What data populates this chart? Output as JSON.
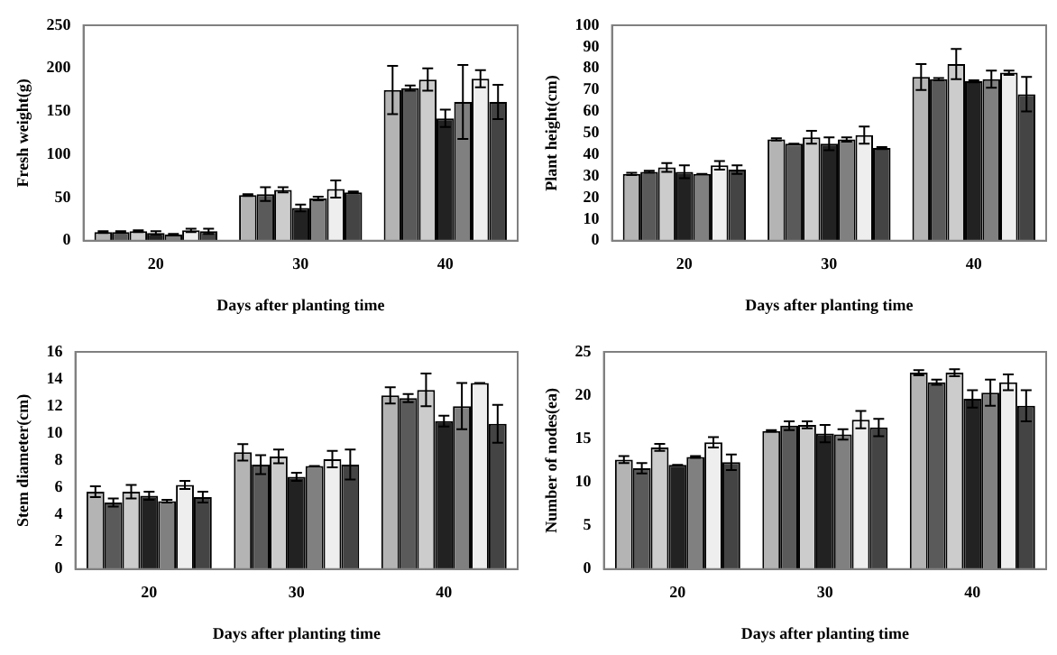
{
  "chart_data": [
    {
      "type": "bar",
      "xlabel": "Days after planting time",
      "ylabel": "Fresh weight(g)",
      "categories": [
        "20",
        "30",
        "40"
      ],
      "ylim": [
        0,
        250
      ],
      "yticks": [
        0,
        50,
        100,
        150,
        200,
        250
      ],
      "grid": false,
      "legend": false,
      "series": [
        {
          "color": "#b4b4b4",
          "values": [
            10,
            53,
            175
          ],
          "errors": [
            1,
            1,
            28
          ]
        },
        {
          "color": "#5a5a5a",
          "values": [
            10,
            54,
            177
          ],
          "errors": [
            1,
            8,
            3
          ]
        },
        {
          "color": "#cccccc",
          "values": [
            11,
            59,
            187
          ],
          "errors": [
            1,
            3,
            13
          ]
        },
        {
          "color": "#222222",
          "values": [
            9,
            38,
            142
          ],
          "errors": [
            2,
            4,
            10
          ]
        },
        {
          "color": "#808080",
          "values": [
            7,
            49,
            161
          ],
          "errors": [
            1,
            2,
            43
          ]
        },
        {
          "color": "#eeeeee",
          "values": [
            12,
            60,
            188
          ],
          "errors": [
            2,
            10,
            10
          ]
        },
        {
          "color": "#444444",
          "values": [
            11,
            56,
            161
          ],
          "errors": [
            3,
            1,
            20
          ]
        }
      ]
    },
    {
      "type": "bar",
      "xlabel": "Days after planting time",
      "ylabel": "Plant height(cm)",
      "categories": [
        "20",
        "30",
        "40"
      ],
      "ylim": [
        0,
        100
      ],
      "yticks": [
        0,
        10,
        20,
        30,
        40,
        50,
        60,
        70,
        80,
        90,
        100
      ],
      "grid": false,
      "legend": false,
      "series": [
        {
          "color": "#b4b4b4",
          "values": [
            31,
            47,
            76
          ],
          "errors": [
            0.5,
            0.5,
            6
          ]
        },
        {
          "color": "#5a5a5a",
          "values": [
            32,
            45,
            75
          ],
          "errors": [
            0.5,
            0,
            0.5
          ]
        },
        {
          "color": "#cccccc",
          "values": [
            34,
            48,
            82
          ],
          "errors": [
            2,
            3,
            7
          ]
        },
        {
          "color": "#222222",
          "values": [
            32,
            45,
            74
          ],
          "errors": [
            3,
            3,
            0.5
          ]
        },
        {
          "color": "#808080",
          "values": [
            31,
            47,
            75
          ],
          "errors": [
            0,
            1,
            4
          ]
        },
        {
          "color": "#eeeeee",
          "values": [
            35,
            49,
            78
          ],
          "errors": [
            2,
            4,
            1
          ]
        },
        {
          "color": "#444444",
          "values": [
            33,
            43,
            68
          ],
          "errors": [
            2,
            0.5,
            8
          ]
        }
      ]
    },
    {
      "type": "bar",
      "xlabel": "Days after planting time",
      "ylabel": "Stem diameter(cm)",
      "categories": [
        "20",
        "30",
        "40"
      ],
      "ylim": [
        0,
        16
      ],
      "yticks": [
        0,
        2,
        4,
        6,
        8,
        10,
        12,
        14,
        16
      ],
      "grid": false,
      "legend": false,
      "series": [
        {
          "color": "#b4b4b4",
          "values": [
            5.7,
            8.6,
            12.8
          ],
          "errors": [
            0.4,
            0.6,
            0.6
          ]
        },
        {
          "color": "#5a5a5a",
          "values": [
            4.9,
            7.7,
            12.6
          ],
          "errors": [
            0.3,
            0.7,
            0.3
          ]
        },
        {
          "color": "#cccccc",
          "values": [
            5.7,
            8.3,
            13.2
          ],
          "errors": [
            0.5,
            0.5,
            1.2
          ]
        },
        {
          "color": "#222222",
          "values": [
            5.4,
            6.8,
            10.9
          ],
          "errors": [
            0.3,
            0.3,
            0.4
          ]
        },
        {
          "color": "#808080",
          "values": [
            5.0,
            7.6,
            12.0
          ],
          "errors": [
            0.1,
            0,
            1.7
          ]
        },
        {
          "color": "#eeeeee",
          "values": [
            6.2,
            8.1,
            13.7
          ],
          "errors": [
            0.3,
            0.6,
            0
          ]
        },
        {
          "color": "#444444",
          "values": [
            5.3,
            7.7,
            10.7
          ],
          "errors": [
            0.4,
            1.1,
            1.4
          ]
        }
      ]
    },
    {
      "type": "bar",
      "xlabel": "Days after planting time",
      "ylabel": "Number of nodes(ea)",
      "categories": [
        "20",
        "30",
        "40"
      ],
      "ylim": [
        0,
        25
      ],
      "yticks": [
        0,
        5,
        10,
        15,
        20,
        25
      ],
      "grid": false,
      "legend": false,
      "series": [
        {
          "color": "#b4b4b4",
          "values": [
            12.6,
            15.9,
            22.6
          ],
          "errors": [
            0.4,
            0.1,
            0.3
          ]
        },
        {
          "color": "#5a5a5a",
          "values": [
            11.6,
            16.5,
            21.5
          ],
          "errors": [
            0.6,
            0.5,
            0.3
          ]
        },
        {
          "color": "#cccccc",
          "values": [
            14.0,
            16.6,
            22.6
          ],
          "errors": [
            0.4,
            0.4,
            0.4
          ]
        },
        {
          "color": "#222222",
          "values": [
            12.0,
            15.6,
            19.6
          ],
          "errors": [
            0,
            1,
            1
          ]
        },
        {
          "color": "#808080",
          "values": [
            12.9,
            15.5,
            20.3
          ],
          "errors": [
            0.1,
            0.6,
            1.5
          ]
        },
        {
          "color": "#eeeeee",
          "values": [
            14.6,
            17.2,
            21.5
          ],
          "errors": [
            0.6,
            1,
            0.9
          ]
        },
        {
          "color": "#444444",
          "values": [
            12.3,
            16.3,
            18.8
          ],
          "errors": [
            0.9,
            1,
            1.8
          ]
        }
      ]
    }
  ]
}
